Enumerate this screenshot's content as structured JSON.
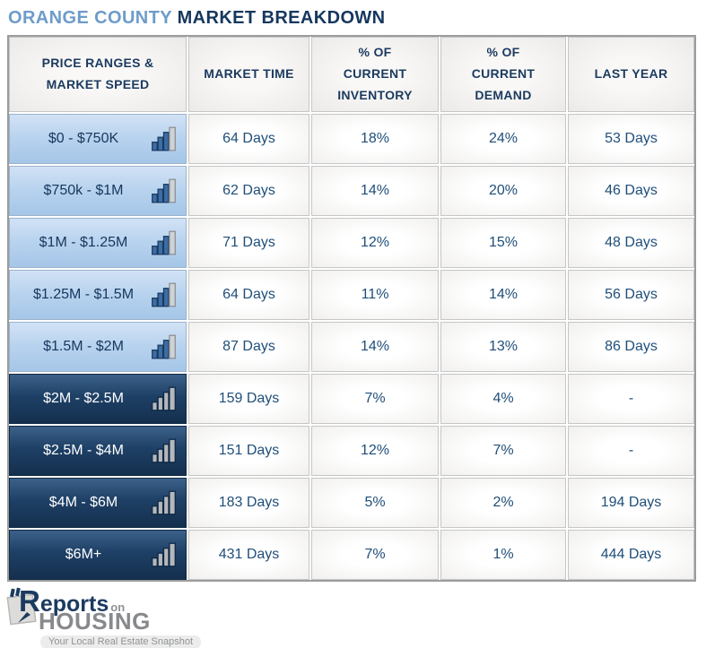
{
  "title": {
    "highlight": "ORANGE COUNTY",
    "rest": " MARKET BREAKDOWN"
  },
  "table": {
    "headers": [
      "PRICE RANGES &\nMARKET SPEED",
      "MARKET TIME",
      "% OF\nCURRENT\nINVENTORY",
      "% OF\nCURRENT\nDEMAND",
      "LAST YEAR"
    ],
    "rows": [
      {
        "range": "$0 - $750K",
        "tier": "light",
        "market_time": "64 Days",
        "inventory": "18%",
        "demand": "24%",
        "last_year": "53 Days"
      },
      {
        "range": "$750k - $1M",
        "tier": "light",
        "market_time": "62 Days",
        "inventory": "14%",
        "demand": "20%",
        "last_year": "46 Days"
      },
      {
        "range": "$1M - $1.25M",
        "tier": "light",
        "market_time": "71 Days",
        "inventory": "12%",
        "demand": "15%",
        "last_year": "48 Days"
      },
      {
        "range": "$1.25M - $1.5M",
        "tier": "light",
        "market_time": "64 Days",
        "inventory": "11%",
        "demand": "14%",
        "last_year": "56 Days"
      },
      {
        "range": "$1.5M - $2M",
        "tier": "light",
        "market_time": "87 Days",
        "inventory": "14%",
        "demand": "13%",
        "last_year": "86 Days"
      },
      {
        "range": "$2M - $2.5M",
        "tier": "dark",
        "market_time": "159 Days",
        "inventory": "7%",
        "demand": "4%",
        "last_year": "-"
      },
      {
        "range": "$2.5M - $4M",
        "tier": "dark",
        "market_time": "151 Days",
        "inventory": "12%",
        "demand": "7%",
        "last_year": "-"
      },
      {
        "range": "$4M - $6M",
        "tier": "dark",
        "market_time": "183 Days",
        "inventory": "5%",
        "demand": "2%",
        "last_year": "194 Days"
      },
      {
        "range": "$6M+",
        "tier": "dark",
        "market_time": "431 Days",
        "inventory": "7%",
        "demand": "1%",
        "last_year": "444 Days"
      }
    ]
  },
  "chart_data": {
    "type": "table",
    "title": "ORANGE COUNTY MARKET BREAKDOWN",
    "columns": [
      "PRICE RANGES & MARKET SPEED",
      "MARKET TIME",
      "% OF CURRENT INVENTORY",
      "% OF CURRENT DEMAND",
      "LAST YEAR"
    ],
    "rows": [
      [
        "$0 - $750K",
        "64 Days",
        "18%",
        "24%",
        "53 Days"
      ],
      [
        "$750k - $1M",
        "62 Days",
        "14%",
        "20%",
        "46 Days"
      ],
      [
        "$1M - $1.25M",
        "71 Days",
        "12%",
        "15%",
        "48 Days"
      ],
      [
        "$1.25M - $1.5M",
        "64 Days",
        "11%",
        "14%",
        "56 Days"
      ],
      [
        "$1.5M - $2M",
        "87 Days",
        "14%",
        "13%",
        "86 Days"
      ],
      [
        "$2M - $2.5M",
        "159 Days",
        "7%",
        "4%",
        "-"
      ],
      [
        "$2.5M - $4M",
        "151 Days",
        "12%",
        "7%",
        "-"
      ],
      [
        "$4M - $6M",
        "183 Days",
        "5%",
        "2%",
        "194 Days"
      ],
      [
        "$6M+",
        "431 Days",
        "7%",
        "1%",
        "444 Days"
      ]
    ],
    "row_groups": {
      "light_blue_rows": [
        0,
        1,
        2,
        3,
        4
      ],
      "dark_navy_rows": [
        5,
        6,
        7,
        8
      ]
    }
  },
  "logo": {
    "brand_r": "R",
    "brand_rest": "eports",
    "brand_on": "on",
    "brand_housing": "HOUSING",
    "tagline": "Your Local Real Estate Snapshot"
  },
  "colors": {
    "title_highlight": "#6d9cc9",
    "title_rest": "#16375e",
    "header_text": "#1b3a5f",
    "data_text": "#1f4e79",
    "light_row_bg": "#b7d2ee",
    "dark_row_bg": "#1e4066",
    "dark_row_text": "#ffffff",
    "icon_bar_blue": "#3d6fa6",
    "icon_bar_gray": "#b4b8bc",
    "logo_navy": "#1b3a5f",
    "logo_gray": "#87898c"
  }
}
